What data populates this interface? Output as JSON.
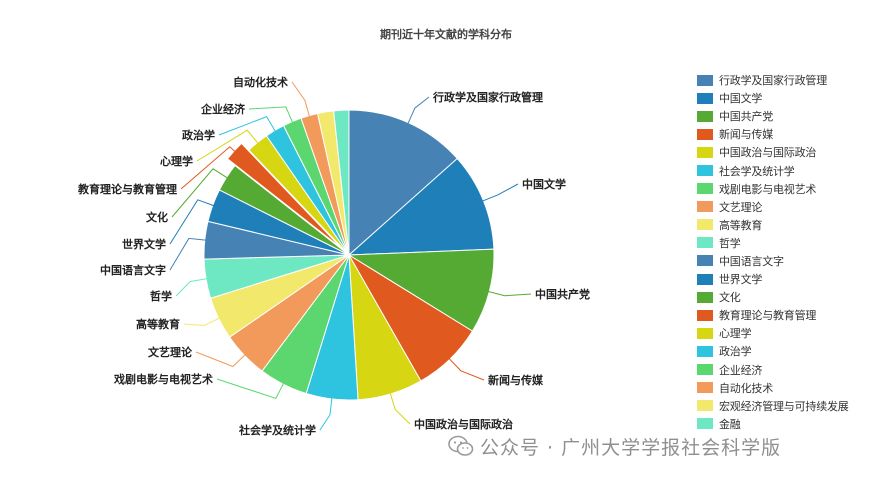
{
  "chart_data": {
    "type": "pie",
    "title": "期刊近十年文献的学科分布",
    "legend_position": "right",
    "slices": [
      {
        "label": "行政学及国家行政管理",
        "value": 13.5,
        "color": "#4682b4"
      },
      {
        "label": "中国文学",
        "value": 11.0,
        "color": "#1f7fb8"
      },
      {
        "label": "中国共产党",
        "value": 9.5,
        "color": "#55aa33"
      },
      {
        "label": "新闻与传媒",
        "value": 8.0,
        "color": "#e05a1f"
      },
      {
        "label": "中国政治与国际政治",
        "value": 7.3,
        "color": "#d6d612"
      },
      {
        "label": "社会学及统计学",
        "value": 5.8,
        "color": "#2ec4e0"
      },
      {
        "label": "戏剧电影与电视艺术",
        "value": 5.5,
        "color": "#5cd66e"
      },
      {
        "label": "文艺理论",
        "value": 5.2,
        "color": "#f29a5c"
      },
      {
        "label": "高等教育",
        "value": 4.8,
        "color": "#f2e86b"
      },
      {
        "label": "哲学",
        "value": 4.4,
        "color": "#6ee8c2"
      },
      {
        "label": "中国语言文字",
        "value": 4.2,
        "color": "#4682b4"
      },
      {
        "label": "世界文学",
        "value": 3.7,
        "color": "#1f7fb8"
      },
      {
        "label": "文化",
        "value": 3.2,
        "color": "#55aa33"
      },
      {
        "label": "教育理论与教育管理",
        "value": 2.3,
        "color": "#e05a1f"
      },
      {
        "label": "心理学",
        "value": 2.5,
        "color": "#d6d612"
      },
      {
        "label": "政治学",
        "value": 2.2,
        "color": "#2ec4e0"
      },
      {
        "label": "企业经济",
        "value": 2.1,
        "color": "#5cd66e"
      },
      {
        "label": "自动化技术",
        "value": 1.9,
        "color": "#f29a5c"
      },
      {
        "label": "宏观经济管理与可持续发展",
        "value": 1.8,
        "color": "#f2e86b"
      },
      {
        "label": "金融",
        "value": 1.7,
        "color": "#6ee8c2"
      }
    ]
  },
  "watermark": {
    "text": "公众号 · 广州大学学报社会科学版",
    "icon": "wechat-icon"
  }
}
